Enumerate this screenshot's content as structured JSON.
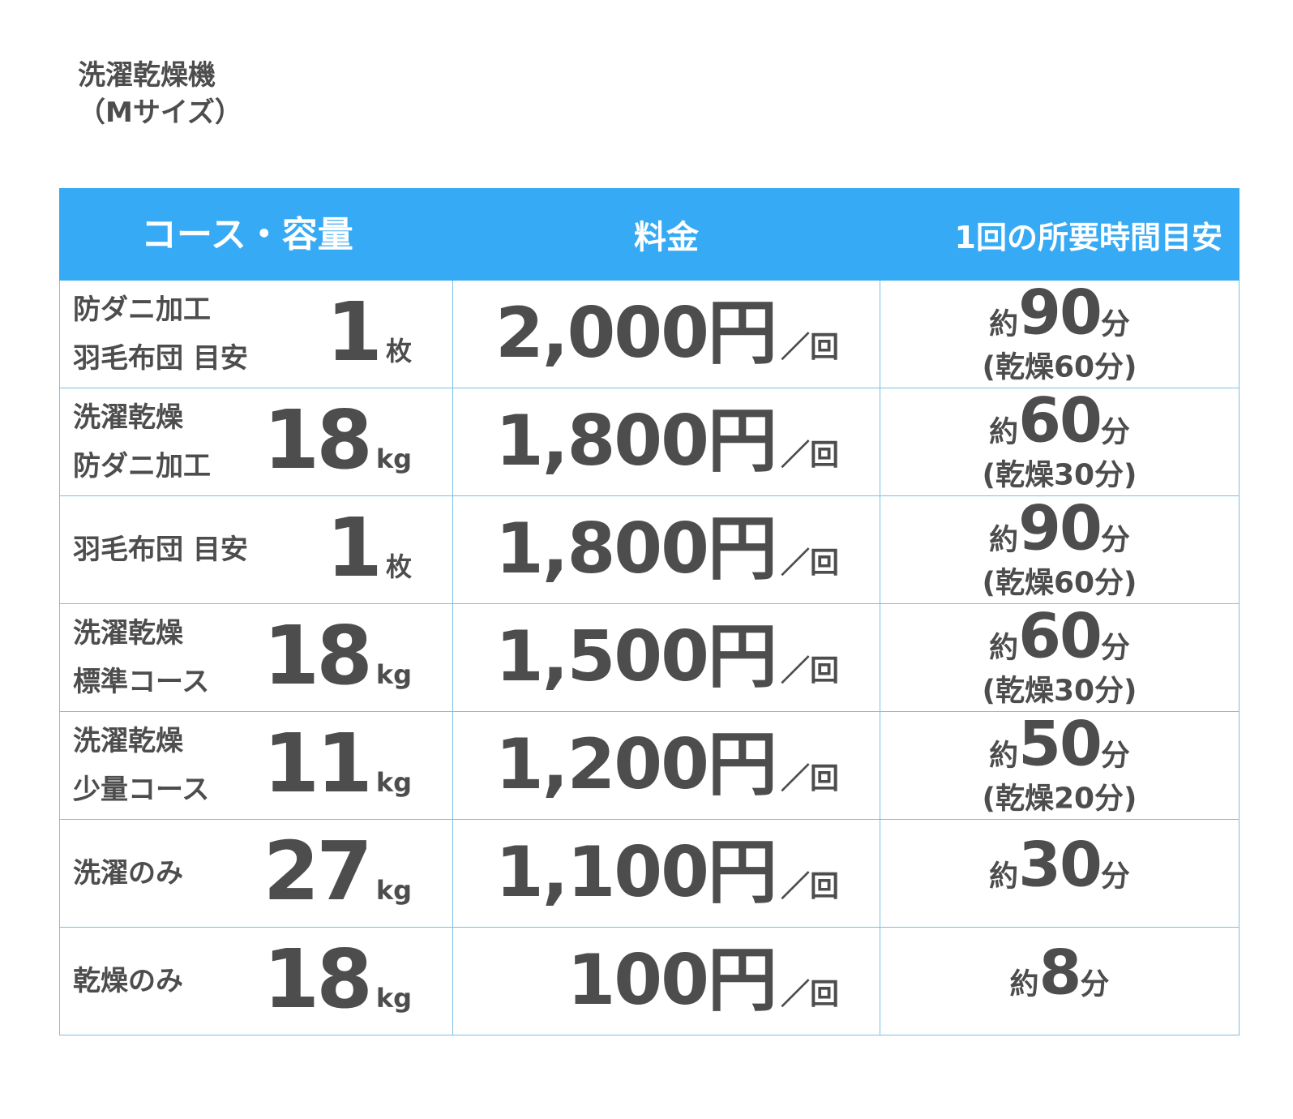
{
  "title": {
    "line1": "洗濯乾燥機",
    "line2": "（Mサイズ）"
  },
  "header": {
    "course": "コース・容量",
    "price": "料金",
    "time": "1回の所要時間目安"
  },
  "accent_color": "#36aaf4",
  "text_color": "#4d4d4d",
  "rows": [
    {
      "name": [
        "防ダニ加工",
        "羽毛布団 目安"
      ],
      "capacity": "1",
      "unit": "枚",
      "price": "2,000円",
      "price_suffix": "／回",
      "time_prefix": "約",
      "time_value": "90",
      "time_unit": "分",
      "time_sub": "(乾燥60分)"
    },
    {
      "name": [
        "洗濯乾燥",
        "防ダニ加工"
      ],
      "capacity": "18",
      "unit": "kg",
      "price": "1,800円",
      "price_suffix": "／回",
      "time_prefix": "約",
      "time_value": "60",
      "time_unit": "分",
      "time_sub": "(乾燥30分)"
    },
    {
      "name": [
        "羽毛布団 目安"
      ],
      "capacity": "1",
      "unit": "枚",
      "price": "1,800円",
      "price_suffix": "／回",
      "time_prefix": "約",
      "time_value": "90",
      "time_unit": "分",
      "time_sub": "(乾燥60分)"
    },
    {
      "name": [
        "洗濯乾燥",
        "標準コース"
      ],
      "capacity": "18",
      "unit": "kg",
      "price": "1,500円",
      "price_suffix": "／回",
      "time_prefix": "約",
      "time_value": "60",
      "time_unit": "分",
      "time_sub": "(乾燥30分)"
    },
    {
      "name": [
        "洗濯乾燥",
        "少量コース"
      ],
      "capacity": "11",
      "unit": "kg",
      "price": "1,200円",
      "price_suffix": "／回",
      "time_prefix": "約",
      "time_value": "50",
      "time_unit": "分",
      "time_sub": "(乾燥20分)"
    },
    {
      "name": [
        "洗濯のみ"
      ],
      "capacity": "27",
      "unit": "kg",
      "price": "1,100円",
      "price_suffix": "／回",
      "time_prefix": "約",
      "time_value": "30",
      "time_unit": "分",
      "time_sub": ""
    },
    {
      "name": [
        "乾燥のみ"
      ],
      "capacity": "18",
      "unit": "kg",
      "price": "100円",
      "price_suffix": "／回",
      "time_prefix": "約",
      "time_value": "8",
      "time_unit": "分",
      "time_sub": ""
    }
  ]
}
